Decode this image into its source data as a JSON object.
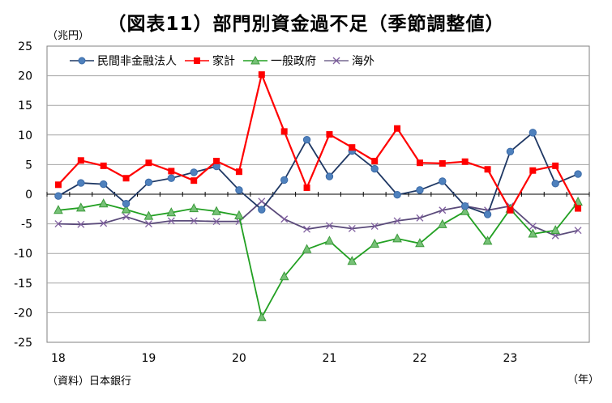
{
  "header": {
    "title": "（図表11）部門別資金過不足（季節調整値）",
    "unit": "（兆円）",
    "year_unit": "（年）",
    "source": "（資料）日本銀行"
  },
  "colors": {
    "corporate": "#4f81bd",
    "household": "#ff0000",
    "government": "#77c177",
    "overseas": "#7f5f9f",
    "corporate_line": "#1f3864",
    "household_line": "#ff0000",
    "government_line": "#22a022",
    "overseas_line": "#5a4a7a"
  },
  "chart_data": {
    "type": "line",
    "x_labels": [
      "18",
      "19",
      "20",
      "21",
      "22",
      "23"
    ],
    "ylim": [
      -25,
      25
    ],
    "yticks": [
      25,
      20,
      15,
      10,
      5,
      0,
      -5,
      -10,
      -15,
      -20,
      -25
    ],
    "grid": true,
    "legend_position": "top-left",
    "series": [
      {
        "name": "民間非金融法人",
        "marker": "circle",
        "values": [
          -0.3,
          1.9,
          1.7,
          -1.6,
          2.0,
          2.7,
          3.7,
          4.7,
          0.7,
          -2.6,
          2.4,
          9.2,
          3.0,
          7.3,
          4.3,
          -0.1,
          0.7,
          2.2,
          -2.0,
          -3.4,
          7.2,
          10.4,
          1.8,
          3.4
        ]
      },
      {
        "name": "家計",
        "marker": "square",
        "values": [
          1.6,
          5.7,
          4.8,
          2.7,
          5.3,
          3.9,
          2.3,
          5.6,
          3.8,
          20.2,
          10.6,
          1.1,
          10.1,
          7.9,
          5.6,
          11.1,
          5.3,
          5.2,
          5.5,
          4.2,
          -2.7,
          4.0,
          4.8,
          -2.4
        ]
      },
      {
        "name": "一般政府",
        "marker": "triangle",
        "values": [
          -2.7,
          -2.3,
          -1.6,
          -2.6,
          -3.7,
          -3.1,
          -2.4,
          -2.9,
          -3.6,
          -20.8,
          -13.9,
          -9.3,
          -7.9,
          -11.3,
          -8.4,
          -7.5,
          -8.3,
          -5.1,
          -2.9,
          -7.9,
          -2.5,
          -6.7,
          -6.1,
          -1.3
        ]
      },
      {
        "name": "海外",
        "marker": "x",
        "values": [
          -5.0,
          -5.1,
          -4.9,
          -3.8,
          -5.0,
          -4.5,
          -4.5,
          -4.6,
          -4.6,
          -1.2,
          -4.2,
          -5.9,
          -5.3,
          -5.8,
          -5.4,
          -4.5,
          -4.0,
          -2.7,
          -2.0,
          -2.7,
          -2.0,
          -5.4,
          -7.0,
          -6.1
        ]
      }
    ]
  }
}
